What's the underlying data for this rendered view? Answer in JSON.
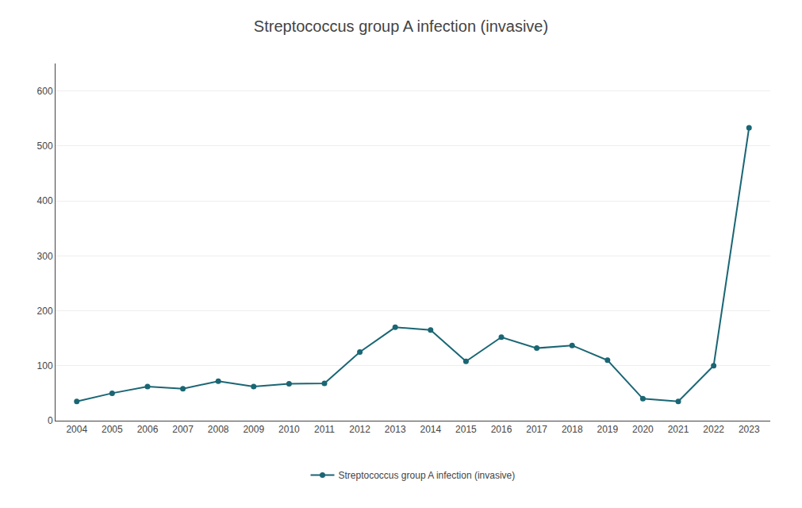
{
  "chart_data": {
    "type": "line",
    "title": "Streptococcus group A infection (invasive)",
    "x": [
      2004,
      2005,
      2006,
      2007,
      2008,
      2009,
      2010,
      2011,
      2012,
      2013,
      2014,
      2015,
      2016,
      2017,
      2018,
      2019,
      2020,
      2021,
      2022,
      2023
    ],
    "series": [
      {
        "name": "Streptococcus group A infection (invasive)",
        "color": "#1a6674",
        "marker": "circle",
        "values": [
          35,
          50,
          62,
          58,
          72,
          62,
          67,
          68,
          125,
          170,
          165,
          108,
          152,
          132,
          137,
          110,
          40,
          35,
          100,
          533
        ]
      }
    ],
    "xlim": [
      2003.4,
      2023.6
    ],
    "xticks": [
      2004,
      2005,
      2006,
      2007,
      2008,
      2009,
      2010,
      2011,
      2012,
      2013,
      2014,
      2015,
      2016,
      2017,
      2018,
      2019,
      2020,
      2021,
      2022,
      2023
    ],
    "ylim": [
      0,
      650
    ],
    "yticks": [
      0,
      100,
      200,
      300,
      400,
      500,
      600
    ],
    "grid": true,
    "legend": "bottom"
  }
}
